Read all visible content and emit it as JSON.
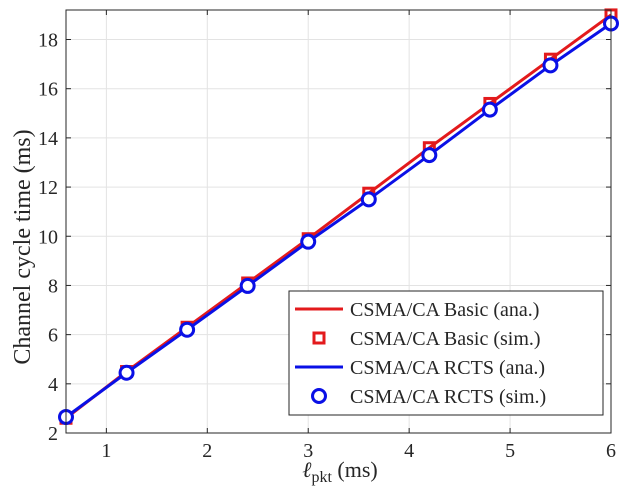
{
  "chart_data": {
    "type": "line",
    "title": "",
    "xlabel": "ℓ",
    "xlabel_sub": "pkt",
    "xlabel_unit": " (ms)",
    "ylabel": "Channel cycle time (ms)",
    "xlim": [
      0.6,
      6
    ],
    "ylim": [
      2,
      19.2
    ],
    "xticks": [
      1,
      2,
      3,
      4,
      5,
      6
    ],
    "yticks": [
      2,
      4,
      6,
      8,
      10,
      12,
      14,
      16,
      18
    ],
    "grid": true,
    "legend_position": "bottom-right",
    "x": [
      0.6,
      1.2,
      1.8,
      2.4,
      3.0,
      3.6,
      4.2,
      4.8,
      5.4,
      6.0
    ],
    "series": [
      {
        "name": "CSMA/CA Basic (ana.)",
        "style": "line",
        "color": "#e31a1c",
        "values": [
          2.6,
          4.5,
          6.3,
          8.1,
          9.9,
          11.75,
          13.6,
          15.4,
          17.2,
          19.0
        ]
      },
      {
        "name": "CSMA/CA Basic (sim.)",
        "style": "square",
        "color": "#e31a1c",
        "values": [
          2.6,
          4.5,
          6.3,
          8.1,
          9.9,
          11.75,
          13.6,
          15.4,
          17.2,
          19.0
        ]
      },
      {
        "name": "CSMA/CA RCTS (ana.)",
        "style": "line",
        "color": "#0a10e6",
        "values": [
          2.65,
          4.45,
          6.2,
          7.98,
          9.78,
          11.5,
          13.3,
          15.15,
          16.95,
          18.65
        ]
      },
      {
        "name": "CSMA/CA RCTS (sim.)",
        "style": "circle",
        "color": "#0a10e6",
        "values": [
          2.65,
          4.45,
          6.2,
          7.98,
          9.78,
          11.5,
          13.3,
          15.15,
          16.95,
          18.65
        ]
      }
    ]
  }
}
